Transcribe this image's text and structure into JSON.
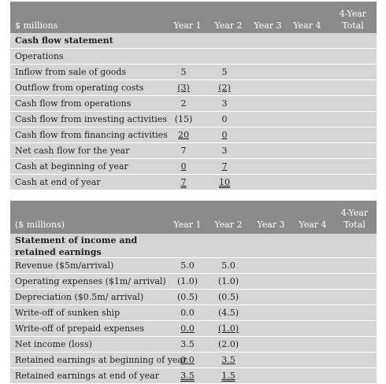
{
  "table1": {
    "unit_label": "$ millions",
    "columns": [
      "Year 1",
      "Year 2",
      "Year 3",
      "Year 4",
      "4-Year",
      "Total"
    ],
    "rows": [
      {
        "label": "Cash flow statement",
        "y1": "",
        "y2": ""
      },
      {
        "label": "Operations",
        "y1": "",
        "y2": ""
      },
      {
        "label": "Inflow from sale of goods",
        "y1": "5",
        "y2": "5"
      },
      {
        "label": "Outflow from operating costs",
        "y1": "(3)",
        "y2": "(2)"
      },
      {
        "label": "Cash flow from operations",
        "y1": "2",
        "y2": "3"
      },
      {
        "label": "Cash flow from investing activities",
        "y1": "(15)",
        "y2": "0"
      },
      {
        "label": "Cash flow from financing activities",
        "y1": "20",
        "y2": "0"
      },
      {
        "label": "Net cash flow for the year",
        "y1": "7",
        "y2": "3"
      },
      {
        "label": "Cash at beginning of year",
        "y1": "0",
        "y2": "7"
      },
      {
        "label": "Cash at end of year",
        "y1": "7",
        "y2": "10"
      }
    ]
  },
  "table2": {
    "unit_label": "($ millions)",
    "columns": [
      "Year 1",
      "Year 2",
      "Year 3",
      "Year 4",
      "4-Year",
      "Total"
    ],
    "rows": [
      {
        "label": "Statement of income and retained earnings",
        "y1": "",
        "y2": ""
      },
      {
        "label": "Revenue ($5m/arrival)",
        "y1": "5.0",
        "y2": "5.0"
      },
      {
        "label": "Operating expenses ($1m/ arrival)",
        "y1": "(1.0)",
        "y2": "(1.0)"
      },
      {
        "label": "Depreciation ($0.5m/ arrival)",
        "y1": "(0.5)",
        "y2": "(0.5)"
      },
      {
        "label": "Write-off of sunken ship",
        "y1": "0.0",
        "y2": "(4.5)"
      },
      {
        "label": "Write-off of prepaid expenses",
        "y1": "0.0",
        "y2": "(1.0)"
      },
      {
        "label": "Net income (loss)",
        "y1": "3.5",
        "y2": "(2.0)"
      },
      {
        "label": "Retained earnings at beginning of year",
        "y1": "0.0",
        "y2": "3.5"
      },
      {
        "label": "Retained earnings at end of year",
        "y1": "3.5",
        "y2": "1.5"
      }
    ]
  }
}
